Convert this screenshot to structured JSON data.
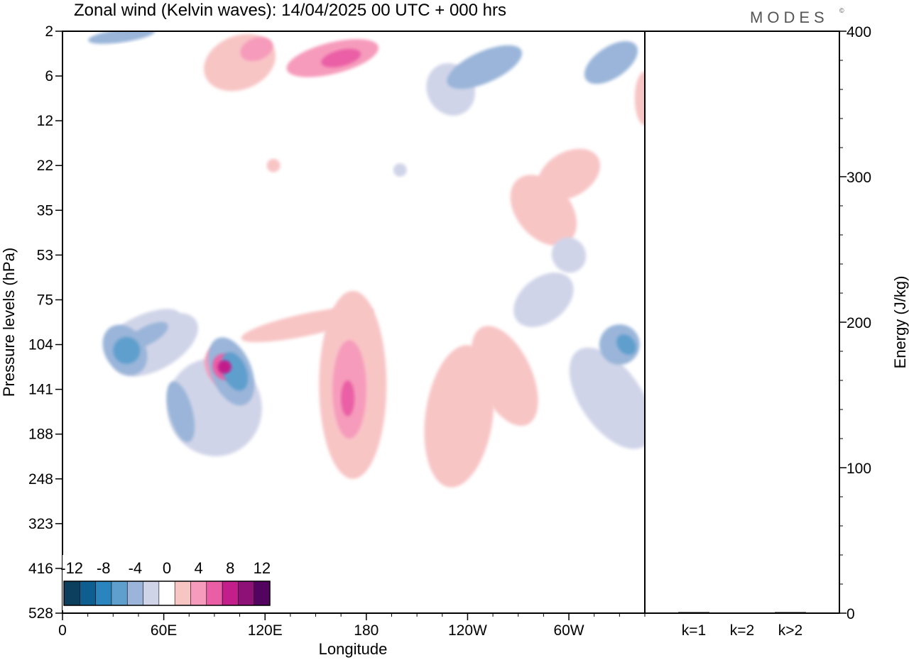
{
  "header": {
    "title": "Zonal wind (Kelvin waves):  14/04/2025  00 UTC  + 000 hrs",
    "brand": "MODES",
    "brand_mark": "©"
  },
  "chart_data": [
    {
      "type": "heatmap",
      "title": "Zonal wind (Kelvin waves):  14/04/2025  00 UTC  + 000 hrs",
      "xlabel": "Longitude",
      "ylabel": "Pressure levels (hPa)",
      "x_ticks": [
        "0",
        "60E",
        "120E",
        "180",
        "120W",
        "60W"
      ],
      "y_ticks": [
        "2",
        "6",
        "12",
        "22",
        "35",
        "53",
        "75",
        "104",
        "141",
        "188",
        "248",
        "323",
        "416",
        "528"
      ],
      "x_range": [
        0,
        345
      ],
      "grid": false,
      "colorbar": {
        "placement": "bottom-left",
        "levels": [
          -14,
          -12,
          -10,
          -8,
          -6,
          -4,
          -2,
          2,
          4,
          6,
          8,
          10,
          12,
          14
        ],
        "labels": [
          "-12",
          "-8",
          "-4",
          "0",
          "4",
          "8",
          "12"
        ],
        "colors": [
          "#0c3e5e",
          "#0e5f8f",
          "#2a84bd",
          "#5f9fcd",
          "#9ab5d9",
          "#d0d4e8",
          "#ffffff",
          "#f8c5c5",
          "#f69bbb",
          "#ea5ea5",
          "#c21f8b",
          "#8d1177",
          "#52045f"
        ]
      },
      "features": [
        {
          "sign": "neg",
          "strength": 2,
          "lon": 37,
          "lev": 0.12,
          "dlon": 12,
          "dlev": 0.6,
          "rot": -32
        },
        {
          "sign": "neg",
          "strength": 3,
          "lon": 38,
          "lev": 0.13,
          "dlon": 8,
          "dlev": 0.3,
          "rot": -30
        },
        {
          "sign": "neg",
          "strength": 2,
          "lon": 50,
          "lev": -0.2,
          "dlon": 14,
          "dlev": 0.2,
          "rot": -28
        },
        {
          "sign": "neg",
          "strength": 1,
          "lon": 55,
          "lev": 0.0,
          "dlon": 28,
          "dlev": 0.55,
          "rot": -30
        },
        {
          "sign": "neg",
          "strength": 1,
          "lon": 50,
          "lev": -0.45,
          "dlon": 20,
          "dlev": 0.25,
          "rot": -20
        },
        {
          "sign": "pos",
          "strength": 2,
          "lon": 95,
          "lev": 0.5,
          "dlon": 10,
          "dlev": 0.5,
          "rot": -28
        },
        {
          "sign": "pos",
          "strength": 3,
          "lon": 96,
          "lev": 0.5,
          "dlon": 7,
          "dlev": 0.3,
          "rot": -28
        },
        {
          "sign": "pos",
          "strength": 4,
          "lon": 96,
          "lev": 0.5,
          "dlon": 4,
          "dlev": 0.15,
          "rot": -28
        },
        {
          "sign": "pos",
          "strength": 1,
          "lon": 145,
          "lev": -0.45,
          "dlon": 40,
          "dlev": 0.25,
          "rot": -12
        },
        {
          "sign": "neg",
          "strength": 2,
          "lon": 100,
          "lev": 0.6,
          "dlon": 12,
          "dlev": 0.8,
          "rot": -22
        },
        {
          "sign": "neg",
          "strength": 3,
          "lon": 102,
          "lev": 0.6,
          "dlon": 7,
          "dlev": 0.45,
          "rot": -22
        },
        {
          "sign": "neg",
          "strength": 2,
          "lon": 70,
          "lev": 1.5,
          "dlon": 7,
          "dlev": 0.7,
          "rot": -15
        },
        {
          "sign": "neg",
          "strength": 1,
          "lon": 90,
          "lev": 1.4,
          "dlon": 28,
          "dlev": 1.1,
          "rot": -20
        },
        {
          "sign": "pos",
          "strength": 1,
          "lon": 172,
          "lev": 0.9,
          "dlon": 20,
          "dlev": 2.1,
          "rot": 0
        },
        {
          "sign": "pos",
          "strength": 2,
          "lon": 170,
          "lev": 1.0,
          "dlon": 10,
          "dlev": 1.1,
          "rot": 0
        },
        {
          "sign": "pos",
          "strength": 3,
          "lon": 169,
          "lev": 1.2,
          "dlon": 4,
          "dlev": 0.4,
          "rot": 0
        },
        {
          "sign": "pos",
          "strength": 1,
          "lon": 235,
          "lev": 1.6,
          "dlon": 20,
          "dlev": 1.6,
          "rot": 8
        },
        {
          "sign": "pos",
          "strength": 1,
          "lon": 262,
          "lev": 0.7,
          "dlon": 16,
          "dlev": 1.2,
          "rot": -25
        },
        {
          "sign": "neg",
          "strength": 1,
          "lon": 325,
          "lev": 1.2,
          "dlon": 18,
          "dlev": 1.3,
          "rot": -35
        },
        {
          "sign": "neg",
          "strength": 2,
          "lon": 330,
          "lev": 0.0,
          "dlon": 12,
          "dlev": 0.45,
          "rot": -40
        },
        {
          "sign": "neg",
          "strength": 3,
          "lon": 334,
          "lev": 0.0,
          "dlon": 5,
          "dlev": 0.25,
          "rot": -40
        },
        {
          "sign": "pos",
          "strength": 1,
          "lon": 285,
          "lev": -3.0,
          "dlon": 16,
          "dlev": 0.9,
          "rot": -40
        },
        {
          "sign": "neg",
          "strength": 1,
          "lon": 285,
          "lev": -1.0,
          "dlon": 20,
          "dlev": 0.5,
          "rot": -38
        },
        {
          "sign": "pos",
          "strength": 2,
          "lon": 160,
          "lev": -6.4,
          "dlon": 28,
          "dlev": 0.35,
          "rot": -14
        },
        {
          "sign": "pos",
          "strength": 3,
          "lon": 165,
          "lev": -6.4,
          "dlon": 12,
          "dlev": 0.18,
          "rot": -14
        },
        {
          "sign": "pos",
          "strength": 1,
          "lon": 105,
          "lev": -6.3,
          "dlon": 22,
          "dlev": 0.6,
          "rot": -22
        },
        {
          "sign": "pos",
          "strength": 2,
          "lon": 115,
          "lev": -6.6,
          "dlon": 10,
          "dlev": 0.25,
          "rot": -20
        },
        {
          "sign": "neg",
          "strength": 2,
          "lon": 250,
          "lev": -6.2,
          "dlon": 24,
          "dlev": 0.35,
          "rot": -24
        },
        {
          "sign": "neg",
          "strength": 1,
          "lon": 230,
          "lev": -5.7,
          "dlon": 14,
          "dlev": 0.6,
          "rot": -28
        },
        {
          "sign": "neg",
          "strength": 2,
          "lon": 325,
          "lev": -6.3,
          "dlon": 18,
          "dlev": 0.35,
          "rot": -34
        },
        {
          "sign": "neg",
          "strength": 2,
          "lon": 35,
          "lev": -6.9,
          "dlon": 20,
          "dlev": 0.15,
          "rot": -8
        },
        {
          "sign": "pos",
          "strength": 1,
          "lon": 300,
          "lev": -3.8,
          "dlon": 20,
          "dlev": 0.5,
          "rot": -30
        },
        {
          "sign": "pos",
          "strength": 1,
          "lon": 345,
          "lev": -5.5,
          "dlon": 6,
          "dlev": 0.6,
          "rot": 0
        },
        {
          "sign": "neg",
          "strength": 1,
          "lon": 300,
          "lev": -2.0,
          "dlon": 10,
          "dlev": 0.4,
          "rot": -30
        },
        {
          "sign": "neg",
          "strength": 1,
          "lon": 200,
          "lev": -3.9,
          "dlon": 4,
          "dlev": 0.15,
          "rot": 0
        },
        {
          "sign": "pos",
          "strength": 1,
          "lon": 125,
          "lev": -4.0,
          "dlon": 4,
          "dlev": 0.15,
          "rot": 0
        }
      ]
    },
    {
      "type": "bar",
      "ylabel": "Energy (J/kg)",
      "categories": [
        "k=1",
        "k=2",
        "k>2"
      ],
      "values": [
        0.5,
        0,
        0.5
      ],
      "ylim": [
        0,
        400
      ],
      "y_ticks": [
        "0",
        "100",
        "200",
        "300",
        "400"
      ]
    }
  ]
}
